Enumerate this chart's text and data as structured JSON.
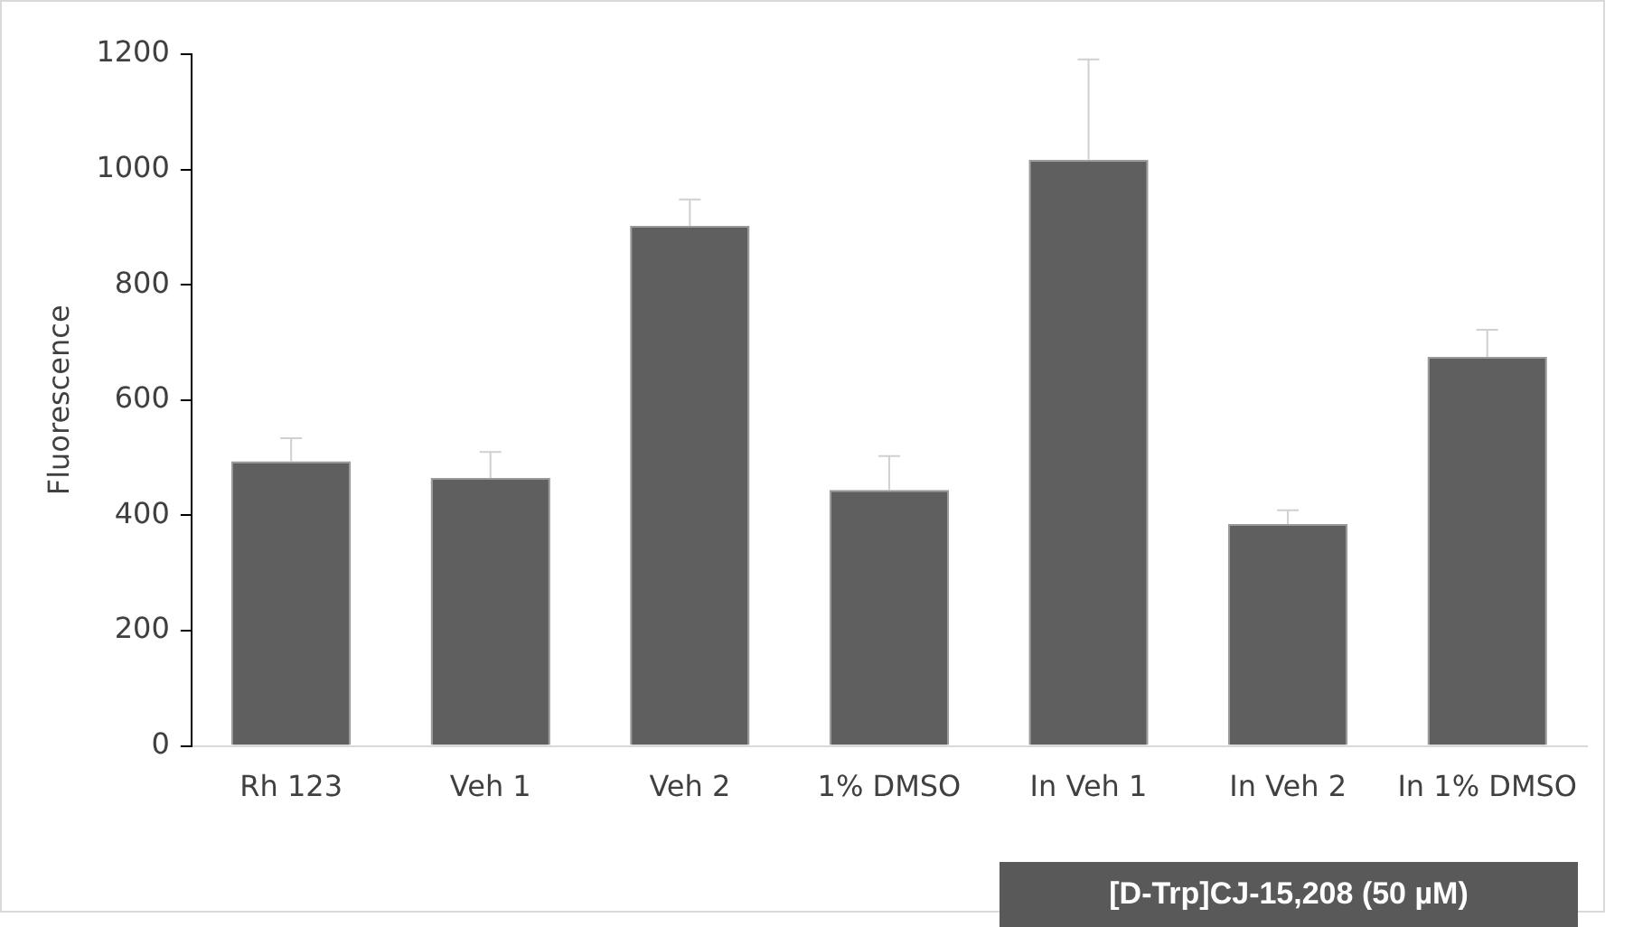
{
  "chart_data": {
    "type": "bar",
    "ylabel": "Fluorescence",
    "categories": [
      "Rh 123",
      "Veh 1",
      "Veh 2",
      "1% DMSO",
      "In Veh 1",
      "In Veh 2",
      "In 1% DMSO"
    ],
    "values": [
      494,
      465,
      902,
      444,
      1017,
      385,
      675
    ],
    "errors": [
      [
        494,
        534
      ],
      [
        465,
        510
      ],
      [
        902,
        948
      ],
      [
        444,
        503
      ],
      [
        1017,
        1191
      ],
      [
        385,
        409
      ],
      [
        675,
        722
      ]
    ],
    "color": "#5f5f5f",
    "ylim": [
      0,
      1200
    ],
    "yticks": [
      0,
      200,
      400,
      600,
      800,
      1000,
      1200
    ],
    "grid": false,
    "legend": false,
    "annotations": [
      "[D-Trp]CJ-15,208 (50 µM)"
    ]
  }
}
